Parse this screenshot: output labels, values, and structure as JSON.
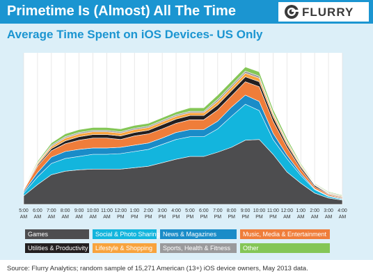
{
  "header": {
    "title": "Primetime Is (Almost) All The Time"
  },
  "logo": {
    "text": "FLURRY",
    "icon": "flurry-logo-icon"
  },
  "colors": {
    "header_bg": "#1b95d1",
    "panel_bg": "#dceff8",
    "subtitle": "#1b95d1"
  },
  "chart_data": {
    "type": "area",
    "stacked": true,
    "title": "Average Time Spent on iOS Devices- US Only",
    "xlabel": "",
    "ylabel": "",
    "grid": true,
    "legend_position": "bottom",
    "x": [
      "5:00 AM",
      "6:00 AM",
      "7:00 AM",
      "8:00 AM",
      "9:00 AM",
      "10:00 AM",
      "11:00 AM",
      "12:00 PM",
      "1:00 PM",
      "2:00 PM",
      "3:00 PM",
      "4:00 PM",
      "5:00 PM",
      "6:00 PM",
      "7:00 PM",
      "8:00 PM",
      "9:00 PM",
      "10:00 PM",
      "11:00 PM",
      "12:00 AM",
      "1:00 AM",
      "2:00 AM",
      "3:00 AM",
      "4:00 AM"
    ],
    "x_ticks": [
      {
        "top": "5:00",
        "bottom": "AM"
      },
      {
        "top": "6:00",
        "bottom": "AM"
      },
      {
        "top": "7:00",
        "bottom": "AM"
      },
      {
        "top": "8:00",
        "bottom": "AM"
      },
      {
        "top": "9:00",
        "bottom": "AM"
      },
      {
        "top": "10:00",
        "bottom": "AM"
      },
      {
        "top": "11:00",
        "bottom": "AM"
      },
      {
        "top": "12:00",
        "bottom": "PM"
      },
      {
        "top": "1:00",
        "bottom": "PM"
      },
      {
        "top": "2:00",
        "bottom": "PM"
      },
      {
        "top": "3:00",
        "bottom": "PM"
      },
      {
        "top": "4:00",
        "bottom": "PM"
      },
      {
        "top": "5:00",
        "bottom": "PM"
      },
      {
        "top": "6:00",
        "bottom": "PM"
      },
      {
        "top": "7:00",
        "bottom": "PM"
      },
      {
        "top": "8:00",
        "bottom": "PM"
      },
      {
        "top": "9:00",
        "bottom": "PM"
      },
      {
        "top": "10:00",
        "bottom": "PM"
      },
      {
        "top": "11:00",
        "bottom": "PM"
      },
      {
        "top": "12:00",
        "bottom": "AM"
      },
      {
        "top": "1:00",
        "bottom": "AM"
      },
      {
        "top": "2:00",
        "bottom": "AM"
      },
      {
        "top": "3:00",
        "bottom": "AM"
      },
      {
        "top": "4:00",
        "bottom": "AM"
      }
    ],
    "ylim": [
      0,
      215
    ],
    "series": [
      {
        "name": "Games",
        "color": "#4d4d4f",
        "values": [
          12,
          28,
          42,
          47,
          49,
          50,
          50,
          50,
          52,
          54,
          59,
          64,
          68,
          68,
          74,
          81,
          91,
          92,
          71,
          46,
          30,
          16,
          9,
          6
        ]
      },
      {
        "name": "Social & Photo Sharing",
        "color": "#13b5dd",
        "values": [
          4,
          11,
          16,
          18,
          19,
          21,
          21,
          22,
          23,
          24,
          26,
          28,
          28,
          28,
          33,
          44,
          51,
          41,
          21,
          19,
          11,
          5,
          2,
          1
        ]
      },
      {
        "name": "News & Magazines",
        "color": "#1a8cc8",
        "values": [
          2,
          6,
          9,
          10,
          10,
          9,
          9,
          9,
          9,
          9,
          9,
          10,
          10,
          10,
          11,
          13,
          13,
          13,
          9,
          5,
          3,
          1,
          1,
          1
        ]
      },
      {
        "name": "Music, Media & Entertainment",
        "color": "#ef7d3a",
        "values": [
          2,
          9,
          9,
          11,
          13,
          14,
          14,
          11,
          13,
          13,
          13,
          13,
          14,
          14,
          16,
          16,
          19,
          21,
          17,
          11,
          6,
          3,
          2,
          1
        ]
      },
      {
        "name": "Utilities & Productivity",
        "color": "#231f20",
        "values": [
          1,
          2,
          3,
          4,
          5,
          5,
          5,
          5,
          5,
          5,
          6,
          6,
          6,
          6,
          7,
          7,
          7,
          7,
          6,
          4,
          3,
          2,
          1,
          1
        ]
      },
      {
        "name": "Lifestyle & Shopping",
        "color": "#f8a33d",
        "values": [
          1,
          2,
          3,
          4,
          4,
          4,
          4,
          4,
          4,
          4,
          4,
          4,
          4,
          4,
          5,
          5,
          5,
          5,
          4,
          3,
          2,
          1,
          1,
          1
        ]
      },
      {
        "name": "Sports, Health & Fitness",
        "color": "#9a9a9c",
        "values": [
          1,
          1,
          2,
          2,
          2,
          2,
          2,
          2,
          2,
          2,
          2,
          2,
          2,
          2,
          3,
          3,
          3,
          3,
          2,
          2,
          1,
          1,
          1,
          1
        ]
      },
      {
        "name": "Other",
        "color": "#84c656",
        "values": [
          1,
          2,
          3,
          4,
          4,
          4,
          4,
          4,
          4,
          4,
          4,
          4,
          5,
          5,
          6,
          6,
          6,
          6,
          5,
          4,
          2,
          1,
          1,
          1
        ]
      }
    ]
  },
  "source": "Source: Flurry Analytics; random sample of 15,271 American (13+) iOS device owners, May 2013 data."
}
